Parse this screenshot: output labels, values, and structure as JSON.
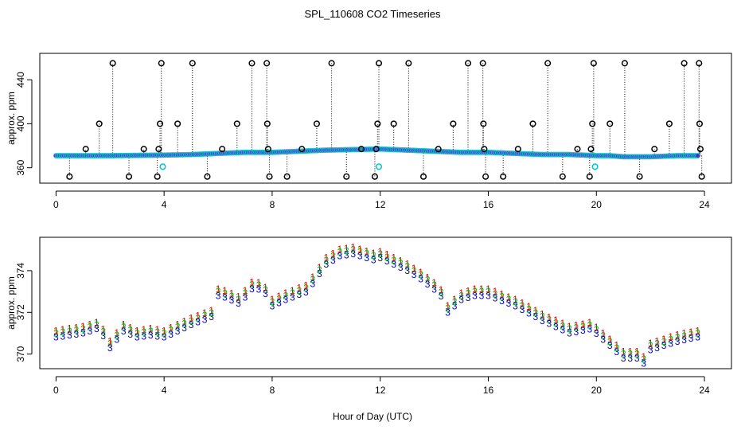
{
  "chart_data": [
    {
      "type": "scatter",
      "title": "SPL_110608  CO2 Timeseries",
      "xlabel": "",
      "ylabel": "approx. ppm",
      "xlim": [
        -0.6,
        25
      ],
      "ylim": [
        346,
        464
      ],
      "x_ticks": [
        0,
        4,
        8,
        12,
        16,
        20,
        24
      ],
      "y_ticks": [
        360,
        400,
        440
      ],
      "baseline_series": {
        "name": "baseline",
        "x_start": 0,
        "x_end": 23.75,
        "step": 0.05,
        "profile_x": [
          0,
          2,
          4,
          5,
          6,
          7,
          8,
          9,
          10,
          11,
          12,
          13,
          14,
          15,
          16,
          17,
          18,
          19,
          20,
          20.5,
          21,
          22,
          23,
          23.75
        ],
        "profile_y": [
          371,
          371,
          371.5,
          372,
          373,
          374,
          374,
          375,
          376,
          376.5,
          377,
          376,
          375,
          374,
          374,
          373,
          372,
          372,
          371,
          371,
          370,
          370,
          371,
          371
        ]
      },
      "spikes": [
        {
          "x": 0.5,
          "y": 352
        },
        {
          "x": 1.1,
          "y": 377
        },
        {
          "x": 1.6,
          "y": 400
        },
        {
          "x": 2.1,
          "y": 455
        },
        {
          "x": 2.7,
          "y": 352
        },
        {
          "x": 3.25,
          "y": 377
        },
        {
          "x": 3.75,
          "y": 352
        },
        {
          "x": 3.8,
          "y": 377
        },
        {
          "x": 3.85,
          "y": 400
        },
        {
          "x": 3.9,
          "y": 455
        },
        {
          "x": 4.5,
          "y": 400
        },
        {
          "x": 5.05,
          "y": 455
        },
        {
          "x": 5.6,
          "y": 352
        },
        {
          "x": 6.15,
          "y": 377
        },
        {
          "x": 6.7,
          "y": 400
        },
        {
          "x": 7.25,
          "y": 455
        },
        {
          "x": 7.8,
          "y": 455
        },
        {
          "x": 7.82,
          "y": 400
        },
        {
          "x": 7.85,
          "y": 377
        },
        {
          "x": 7.9,
          "y": 352
        },
        {
          "x": 8.55,
          "y": 352
        },
        {
          "x": 9.1,
          "y": 377
        },
        {
          "x": 9.65,
          "y": 400
        },
        {
          "x": 10.2,
          "y": 455
        },
        {
          "x": 10.75,
          "y": 352
        },
        {
          "x": 11.3,
          "y": 377
        },
        {
          "x": 11.8,
          "y": 352
        },
        {
          "x": 11.85,
          "y": 377
        },
        {
          "x": 11.9,
          "y": 400
        },
        {
          "x": 11.95,
          "y": 455
        },
        {
          "x": 12.5,
          "y": 400
        },
        {
          "x": 13.05,
          "y": 455
        },
        {
          "x": 13.6,
          "y": 352
        },
        {
          "x": 14.15,
          "y": 377
        },
        {
          "x": 14.7,
          "y": 400
        },
        {
          "x": 15.25,
          "y": 455
        },
        {
          "x": 15.8,
          "y": 455
        },
        {
          "x": 15.82,
          "y": 400
        },
        {
          "x": 15.85,
          "y": 377
        },
        {
          "x": 15.9,
          "y": 352
        },
        {
          "x": 16.55,
          "y": 352
        },
        {
          "x": 17.1,
          "y": 377
        },
        {
          "x": 17.65,
          "y": 400
        },
        {
          "x": 18.2,
          "y": 455
        },
        {
          "x": 18.75,
          "y": 352
        },
        {
          "x": 19.3,
          "y": 377
        },
        {
          "x": 19.75,
          "y": 352
        },
        {
          "x": 19.8,
          "y": 377
        },
        {
          "x": 19.85,
          "y": 400
        },
        {
          "x": 19.9,
          "y": 455
        },
        {
          "x": 20.5,
          "y": 400
        },
        {
          "x": 21.05,
          "y": 455
        },
        {
          "x": 21.6,
          "y": 352
        },
        {
          "x": 22.15,
          "y": 377
        },
        {
          "x": 22.7,
          "y": 400
        },
        {
          "x": 23.25,
          "y": 455
        },
        {
          "x": 23.8,
          "y": 455
        },
        {
          "x": 23.82,
          "y": 400
        },
        {
          "x": 23.85,
          "y": 377
        },
        {
          "x": 23.9,
          "y": 352
        }
      ],
      "cyan_points": [
        {
          "x": 3.95,
          "y": 361
        },
        {
          "x": 11.95,
          "y": 361
        },
        {
          "x": 19.95,
          "y": 361
        }
      ],
      "colors": {
        "baseline_fill": "#3a3ad6",
        "baseline_edge": "#20c8c8",
        "spike": "#000000",
        "cyan": "#00c8c8"
      }
    },
    {
      "type": "scatter",
      "title": "",
      "xlabel": "Hour of Day (UTC)",
      "ylabel": "approx. ppm",
      "xlim": [
        -0.6,
        25
      ],
      "ylim": [
        369.3,
        375.6
      ],
      "x_ticks": [
        0,
        4,
        8,
        12,
        16,
        20,
        24
      ],
      "y_ticks": [
        370,
        372,
        374
      ],
      "step": 0.25,
      "profile_x": [
        0,
        1,
        1.5,
        1.8,
        2.0,
        2.5,
        3,
        3.5,
        4,
        5,
        5.8,
        6.0,
        6.3,
        6.8,
        7.3,
        7.7,
        8.0,
        8.5,
        9.3,
        10,
        10.5,
        11,
        11.8,
        12.0,
        13,
        13.5,
        14,
        14.3,
        14.5,
        15,
        15.5,
        16,
        17,
        18,
        19,
        19.8,
        20.5,
        21,
        21.5,
        21.8,
        22,
        23,
        23.7
      ],
      "profile_y": [
        371.0,
        371.2,
        371.4,
        371.0,
        370.5,
        371.3,
        371.0,
        371.1,
        371.0,
        371.6,
        372.0,
        373.0,
        372.9,
        372.6,
        373.4,
        373.2,
        372.5,
        372.8,
        373.2,
        374.5,
        374.9,
        375.0,
        374.7,
        374.8,
        374.2,
        373.8,
        373.3,
        372.9,
        372.2,
        372.8,
        373.0,
        373.0,
        372.5,
        371.8,
        371.2,
        371.4,
        370.6,
        370.0,
        370.0,
        369.7,
        370.4,
        370.8,
        371.0
      ],
      "series": [
        {
          "name": "1",
          "label": "1",
          "offset": 0.12,
          "color": "#dd0000"
        },
        {
          "name": "2",
          "label": "2",
          "offset": 0.0,
          "color": "#00bb00"
        },
        {
          "name": "3",
          "label": "3",
          "offset": -0.2,
          "color": "#0000cc"
        }
      ]
    }
  ]
}
